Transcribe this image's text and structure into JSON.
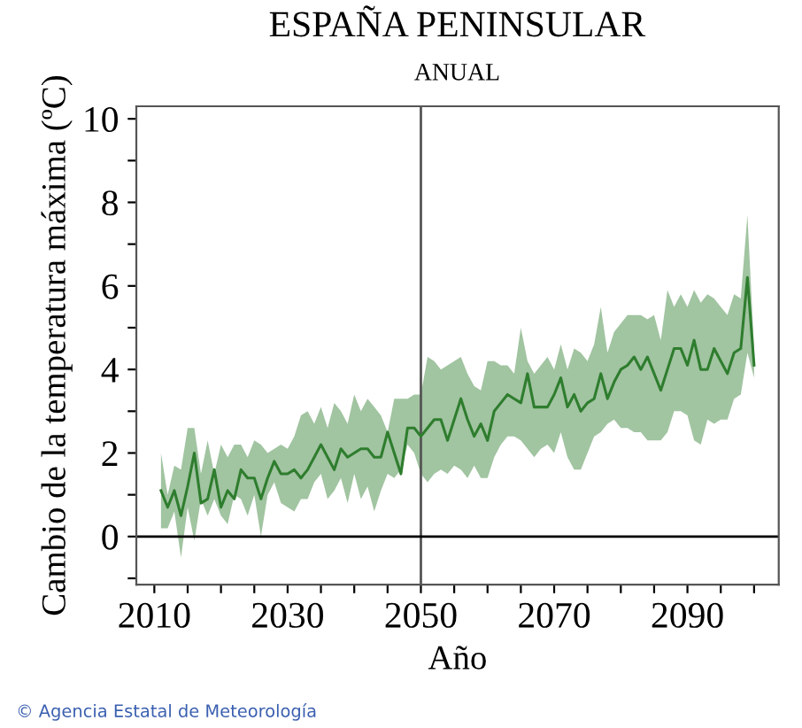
{
  "chart_data": {
    "type": "line",
    "title": "ESPAÑA PENINSULAR",
    "subtitle": "ANUAL",
    "xlabel": "Año",
    "ylabel": "Cambio de la temperatura máxima (ºC)",
    "annotations": [
      "© Agencia Estatal de Meteorología"
    ],
    "x": [
      2011,
      2012,
      2013,
      2014,
      2015,
      2016,
      2017,
      2018,
      2019,
      2020,
      2021,
      2022,
      2023,
      2024,
      2025,
      2026,
      2027,
      2028,
      2029,
      2030,
      2031,
      2032,
      2033,
      2034,
      2035,
      2036,
      2037,
      2038,
      2039,
      2040,
      2041,
      2042,
      2043,
      2044,
      2045,
      2046,
      2047,
      2048,
      2049,
      2050,
      2051,
      2052,
      2053,
      2054,
      2055,
      2056,
      2057,
      2058,
      2059,
      2060,
      2061,
      2062,
      2063,
      2064,
      2065,
      2066,
      2067,
      2068,
      2069,
      2070,
      2071,
      2072,
      2073,
      2074,
      2075,
      2076,
      2077,
      2078,
      2079,
      2080,
      2081,
      2082,
      2083,
      2084,
      2085,
      2086,
      2087,
      2088,
      2089,
      2090,
      2091,
      2092,
      2093,
      2094,
      2095,
      2096,
      2097,
      2098,
      2099,
      2100
    ],
    "series": [
      {
        "color": "#2e7d2e",
        "values": [
          1.1,
          0.7,
          1.1,
          0.5,
          1.2,
          2.0,
          0.8,
          0.9,
          1.6,
          0.7,
          1.1,
          0.9,
          1.6,
          1.4,
          1.4,
          0.9,
          1.4,
          1.8,
          1.5,
          1.5,
          1.6,
          1.4,
          1.6,
          1.9,
          2.2,
          1.9,
          1.6,
          2.1,
          1.9,
          2.0,
          2.1,
          2.1,
          1.9,
          1.9,
          2.5,
          2.0,
          1.5,
          2.6,
          2.6,
          2.4,
          2.6,
          2.8,
          2.8,
          2.3,
          2.8,
          3.3,
          2.8,
          2.4,
          2.7,
          2.3,
          3.0,
          3.2,
          3.4,
          3.3,
          3.2,
          3.9,
          3.1,
          3.1,
          3.1,
          3.4,
          3.8,
          3.1,
          3.4,
          3.0,
          3.2,
          3.3,
          3.9,
          3.3,
          3.7,
          4.0,
          4.1,
          4.3,
          4.0,
          4.3,
          3.9,
          3.5,
          4.0,
          4.5,
          4.5,
          4.1,
          4.7,
          4.0,
          4.0,
          4.5,
          4.2,
          3.9,
          4.4,
          4.5,
          6.2,
          4.1
        ],
        "lower": [
          0.2,
          0.2,
          0.6,
          -0.5,
          0.7,
          -0.1,
          0.9,
          0.5,
          0.9,
          0.5,
          0.3,
          1.0,
          0.9,
          0.5,
          1.0,
          0.0,
          1.0,
          1.3,
          0.8,
          0.7,
          0.6,
          0.9,
          0.9,
          1.3,
          1.5,
          0.9,
          1.1,
          1.4,
          0.8,
          1.5,
          0.9,
          1.2,
          0.6,
          1.1,
          1.5,
          1.4,
          1.6,
          2.2,
          2.0,
          1.5,
          1.3,
          1.5,
          1.6,
          1.5,
          1.7,
          1.6,
          1.4,
          1.7,
          1.4,
          1.4,
          1.9,
          2.2,
          2.4,
          2.4,
          2.3,
          2.1,
          1.9,
          2.1,
          2.2,
          2.0,
          2.5,
          1.9,
          1.6,
          1.6,
          2.0,
          2.4,
          2.5,
          2.7,
          2.8,
          2.6,
          2.6,
          2.5,
          2.5,
          2.3,
          2.3,
          2.3,
          2.5,
          3.0,
          3.0,
          2.9,
          2.3,
          2.2,
          2.8,
          2.7,
          2.8,
          2.8,
          3.3,
          3.4,
          4.4,
          3.8
        ],
        "upper": [
          2.0,
          1.0,
          1.7,
          1.6,
          2.6,
          2.6,
          1.5,
          2.3,
          1.5,
          2.2,
          1.9,
          2.2,
          2.2,
          1.9,
          2.3,
          2.2,
          2.0,
          2.1,
          2.2,
          2.1,
          2.4,
          2.9,
          3.0,
          2.7,
          3.1,
          2.6,
          3.2,
          3.0,
          2.7,
          3.4,
          3.0,
          3.3,
          3.1,
          2.9,
          2.5,
          3.3,
          3.3,
          3.3,
          3.4,
          3.4,
          4.3,
          4.2,
          4.0,
          4.1,
          4.2,
          4.3,
          3.9,
          3.6,
          3.5,
          4.2,
          4.2,
          4.1,
          4.1,
          3.9,
          5.0,
          4.2,
          3.9,
          4.1,
          4.3,
          4.0,
          4.6,
          4.0,
          4.5,
          4.4,
          4.2,
          4.6,
          5.5,
          4.4,
          4.9,
          5.1,
          5.3,
          5.3,
          5.3,
          5.2,
          5.3,
          4.7,
          5.9,
          5.5,
          5.8,
          5.5,
          5.9,
          5.6,
          5.8,
          5.7,
          5.5,
          5.3,
          5.8,
          5.7,
          7.7,
          4.5
        ]
      }
    ],
    "xlim": [
      2007.3,
      2103.7
    ],
    "ylim": [
      -1.15,
      10.3
    ],
    "xticks": [
      {
        "value": 2010,
        "label": "2010"
      },
      {
        "value": 2015,
        "label": null
      },
      {
        "value": 2020,
        "label": null
      },
      {
        "value": 2025,
        "label": null
      },
      {
        "value": 2030,
        "label": "2030"
      },
      {
        "value": 2035,
        "label": null
      },
      {
        "value": 2040,
        "label": null
      },
      {
        "value": 2045,
        "label": null
      },
      {
        "value": 2050,
        "label": "2050"
      },
      {
        "value": 2055,
        "label": null
      },
      {
        "value": 2060,
        "label": null
      },
      {
        "value": 2065,
        "label": null
      },
      {
        "value": 2070,
        "label": "2070"
      },
      {
        "value": 2075,
        "label": null
      },
      {
        "value": 2080,
        "label": null
      },
      {
        "value": 2085,
        "label": null
      },
      {
        "value": 2090,
        "label": "2090"
      },
      {
        "value": 2095,
        "label": null
      },
      {
        "value": 2100,
        "label": null
      }
    ],
    "yticks": [
      {
        "value": -1,
        "label": null
      },
      0,
      {
        "value": 1,
        "label": null
      },
      2,
      {
        "value": 3,
        "label": null
      },
      4,
      {
        "value": 5,
        "label": null
      },
      6,
      {
        "value": 7,
        "label": null
      },
      8,
      {
        "value": 9,
        "label": null
      },
      10
    ],
    "ref_lines": [
      {
        "axis": "x",
        "value": 2050,
        "color": "#555555"
      },
      {
        "axis": "y",
        "value": 0,
        "color": "#000000"
      }
    ],
    "grid": false,
    "legend": false
  }
}
